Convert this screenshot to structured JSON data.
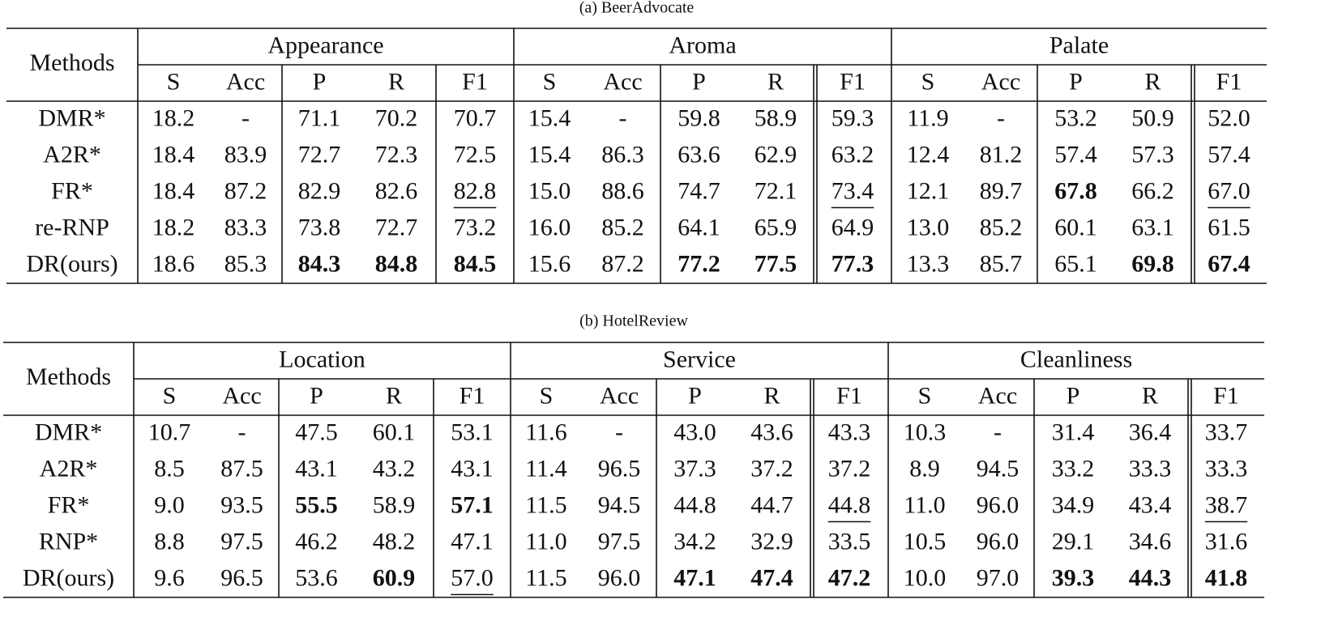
{
  "tables": [
    {
      "caption": "(a)  BeerAdvocate",
      "header": "Methods",
      "groups": [
        "Appearance",
        "Aroma",
        "Palate"
      ],
      "subheaders": [
        "S",
        "Acc",
        "P",
        "R",
        "F1",
        "S",
        "Acc",
        "P",
        "R",
        "F1",
        "S",
        "Acc",
        "P",
        "R",
        "F1"
      ],
      "rows": [
        {
          "method": "DMR*",
          "values": [
            "18.2",
            "-",
            "71.1",
            "70.2",
            "70.7",
            "15.4",
            "-",
            "59.8",
            "58.9",
            "59.3",
            "11.9",
            "-",
            "53.2",
            "50.9",
            "52.0"
          ]
        },
        {
          "method": "A2R*",
          "values": [
            "18.4",
            "83.9",
            "72.7",
            "72.3",
            "72.5",
            "15.4",
            "86.3",
            "63.6",
            "62.9",
            "63.2",
            "12.4",
            "81.2",
            "57.4",
            "57.3",
            "57.4"
          ]
        },
        {
          "method": "FR*",
          "values": [
            "18.4",
            "87.2",
            "82.9",
            "82.6",
            "82.8",
            "15.0",
            "88.6",
            "74.7",
            "72.1",
            "73.4",
            "12.1",
            "89.7",
            "67.8",
            "66.2",
            "67.0"
          ]
        },
        {
          "method": "re-RNP",
          "values": [
            "18.2",
            "83.3",
            "73.8",
            "72.7",
            "73.2",
            "16.0",
            "85.2",
            "64.1",
            "65.9",
            "64.9",
            "13.0",
            "85.2",
            "60.1",
            "63.1",
            "61.5"
          ]
        },
        {
          "method": "DR(ours)",
          "values": [
            "18.6",
            "85.3",
            "84.3",
            "84.8",
            "84.5",
            "15.6",
            "87.2",
            "77.2",
            "77.5",
            "77.3",
            "13.3",
            "85.7",
            "65.1",
            "69.8",
            "67.4"
          ]
        }
      ]
    },
    {
      "caption": "(b)  HotelReview",
      "header": "Methods",
      "groups": [
        "Location",
        "Service",
        "Cleanliness"
      ],
      "subheaders": [
        "S",
        "Acc",
        "P",
        "R",
        "F1",
        "S",
        "Acc",
        "P",
        "R",
        "F1",
        "S",
        "Acc",
        "P",
        "R",
        "F1"
      ],
      "rows": [
        {
          "method": "DMR*",
          "values": [
            "10.7",
            "-",
            "47.5",
            "60.1",
            "53.1",
            "11.6",
            "-",
            "43.0",
            "43.6",
            "43.3",
            "10.3",
            "-",
            "31.4",
            "36.4",
            "33.7"
          ]
        },
        {
          "method": "A2R*",
          "values": [
            "8.5",
            "87.5",
            "43.1",
            "43.2",
            "43.1",
            "11.4",
            "96.5",
            "37.3",
            "37.2",
            "37.2",
            "8.9",
            "94.5",
            "33.2",
            "33.3",
            "33.3"
          ]
        },
        {
          "method": "FR*",
          "values": [
            "9.0",
            "93.5",
            "55.5",
            "58.9",
            "57.1",
            "11.5",
            "94.5",
            "44.8",
            "44.7",
            "44.8",
            "11.0",
            "96.0",
            "34.9",
            "43.4",
            "38.7"
          ]
        },
        {
          "method": "RNP*",
          "values": [
            "8.8",
            "97.5",
            "46.2",
            "48.2",
            "47.1",
            "11.0",
            "97.5",
            "34.2",
            "32.9",
            "33.5",
            "10.5",
            "96.0",
            "29.1",
            "34.6",
            "31.6"
          ]
        },
        {
          "method": "DR(ours)",
          "values": [
            "9.6",
            "96.5",
            "53.6",
            "60.9",
            "57.0",
            "11.5",
            "96.0",
            "47.1",
            "47.4",
            "47.2",
            "10.0",
            "97.0",
            "39.3",
            "44.3",
            "41.8"
          ]
        }
      ]
    }
  ]
}
